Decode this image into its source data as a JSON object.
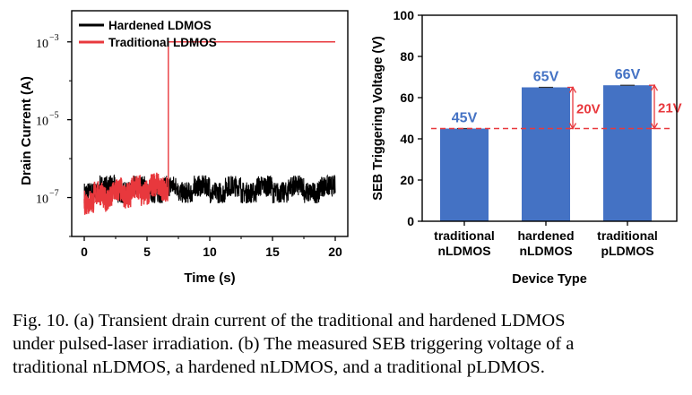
{
  "chart_data": [
    {
      "type": "line",
      "panel": "a",
      "xlabel": "Time (s)",
      "ylabel": "Drain Current (A)",
      "xlim": [
        -1,
        21
      ],
      "ylim_log10": [
        -8,
        -2.2
      ],
      "log_scale_y": true,
      "x_ticks": [
        0,
        5,
        10,
        15,
        20
      ],
      "x_tick_labels": [
        "0",
        "5",
        "10",
        "15",
        "20"
      ],
      "y_ticks_log10": [
        -7,
        -5,
        -3
      ],
      "y_tick_labels": [
        {
          "base": "10",
          "exp": "−7"
        },
        {
          "base": "10",
          "exp": "−5"
        },
        {
          "base": "10",
          "exp": "−3"
        }
      ],
      "legend_position": "top-left",
      "series": [
        {
          "name": "Hardened LDMOS",
          "color": "#000000",
          "description_points": {
            "x_range": [
              0,
              20
            ],
            "y_approx": 1.5e-07,
            "noise_band": [
              6e-08,
              3e-07
            ]
          }
        },
        {
          "name": "Traditional LDMOS",
          "color": "#e8383d",
          "x": [
            0,
            6.7,
            6.7,
            20
          ],
          "y": [
            1e-07,
            2e-07,
            0.001,
            0.001
          ]
        }
      ]
    },
    {
      "type": "bar",
      "panel": "b",
      "xlabel": "Device Type",
      "ylabel": "SEB Triggering Voltage (V)",
      "ylim": [
        0,
        100
      ],
      "y_ticks": [
        0,
        20,
        40,
        60,
        80,
        100
      ],
      "categories": [
        [
          "traditional",
          "nLDMOS"
        ],
        [
          "hardened",
          "nLDMOS"
        ],
        [
          "traditional",
          "pLDMOS"
        ]
      ],
      "values": [
        45,
        65,
        66
      ],
      "value_labels": [
        "45V",
        "65V",
        "66V"
      ],
      "bar_color": "#4472c4",
      "value_label_color": "#4472c4",
      "reference_line": {
        "value": 45,
        "color": "#e8383d",
        "style": "dashed"
      },
      "annotations": [
        {
          "text": "20V",
          "from": 45,
          "to": 65,
          "bar_index": 1,
          "color": "#e8383d"
        },
        {
          "text": "21V",
          "from": 45,
          "to": 66,
          "bar_index": 2,
          "color": "#e8383d"
        }
      ]
    }
  ],
  "caption": {
    "lines": [
      "Fig. 10.   (a) Transient drain current of the traditional and hardened LDMOS",
      "under pulsed-laser irradiation. (b) The measured SEB triggering voltage of a",
      "traditional nLDMOS, a hardened nLDMOS, and a traditional pLDMOS."
    ]
  }
}
